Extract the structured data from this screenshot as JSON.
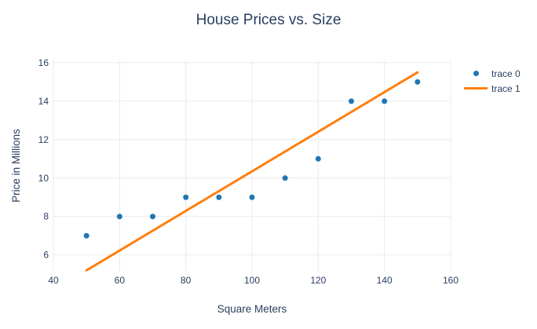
{
  "title": "House Prices vs. Size",
  "chart_data": {
    "type": "scatter",
    "title": "House Prices vs. Size",
    "xlabel": "Square Meters",
    "ylabel": "Price in Millions",
    "xlim": [
      40,
      160
    ],
    "ylim": [
      5.13,
      16.16
    ],
    "xticks": [
      40,
      60,
      80,
      100,
      120,
      140,
      160
    ],
    "yticks": [
      6,
      8,
      10,
      12,
      14,
      16
    ],
    "grid": true,
    "background_color": "#ffffff",
    "grid_color": "#ebebeb",
    "text_color": "#2a3f5f",
    "legend_position": "right",
    "legend": [
      {
        "label": "trace 0",
        "marker": "dot"
      },
      {
        "label": "trace 1",
        "marker": "line"
      }
    ],
    "series": [
      {
        "name": "trace 0",
        "type": "scatter",
        "color": "#1f77b4",
        "x": [
          50,
          60,
          70,
          80,
          90,
          100,
          110,
          120,
          130,
          140,
          150
        ],
        "y": [
          7,
          8,
          8,
          9,
          9,
          9,
          10,
          11,
          14,
          14,
          15
        ]
      },
      {
        "name": "trace 1",
        "type": "line",
        "color": "#ff7f0e",
        "x": [
          50,
          150
        ],
        "y": [
          5.2,
          15.5
        ]
      }
    ]
  }
}
